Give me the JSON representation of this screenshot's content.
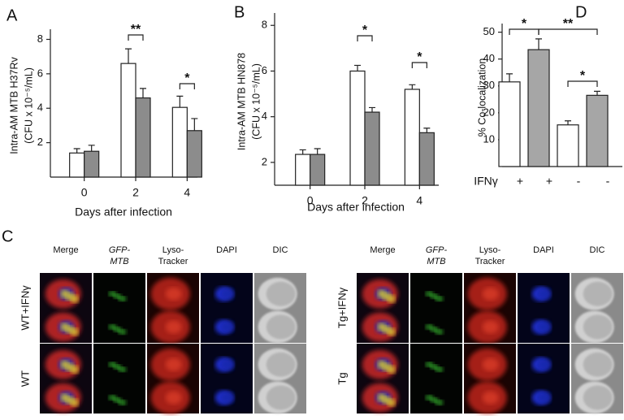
{
  "chart_data": [
    {
      "type": "bar",
      "label": "A",
      "ylabel": [
        "Intra-AM MTB H37Rv",
        "(CFU x 10⁻⁵/mL)"
      ],
      "xlabel": "Days after infection",
      "categories": [
        "0",
        "2",
        "4"
      ],
      "series": [
        {
          "color": "#ffffff",
          "values": [
            1.4,
            6.6,
            4.05
          ],
          "errors": [
            0.25,
            0.85,
            0.65
          ]
        },
        {
          "color": "#8c8c8c",
          "values": [
            1.5,
            4.6,
            2.7
          ],
          "errors": [
            0.35,
            0.55,
            0.7
          ]
        }
      ],
      "ylim": [
        0,
        8.4
      ],
      "yticks": [
        2,
        4,
        6,
        8
      ],
      "annotations": [
        "**",
        "*"
      ]
    },
    {
      "type": "bar",
      "label": "B",
      "ylabel": [
        "Intra-AM MTB HN878",
        "(CFU x 10⁻⁵/mL)"
      ],
      "xlabel": "Days after infection",
      "categories": [
        "0",
        "2",
        "4"
      ],
      "series": [
        {
          "color": "#ffffff",
          "values": [
            2.35,
            6.0,
            5.2
          ],
          "errors": [
            0.2,
            0.25,
            0.2
          ]
        },
        {
          "color": "#8c8c8c",
          "values": [
            2.35,
            4.2,
            3.3
          ],
          "errors": [
            0.25,
            0.2,
            0.2
          ]
        }
      ],
      "ylim": [
        1,
        8.4
      ],
      "yticks": [
        2,
        4,
        6,
        8
      ],
      "annotations": [
        "*",
        "*"
      ]
    },
    {
      "type": "bar",
      "label": "D",
      "ylabel": [
        "% Co-localization"
      ],
      "xlabel": "IFNγ",
      "categories": [
        "+",
        "+",
        "-",
        "-"
      ],
      "series": [
        {
          "colors": [
            "#ffffff",
            "#a6a6a6",
            "#ffffff",
            "#a6a6a6"
          ],
          "values": [
            31.5,
            43.5,
            15.5,
            26.5
          ],
          "errors": [
            3,
            4,
            1.5,
            1.5
          ]
        }
      ],
      "ylim": [
        0,
        52
      ],
      "yticks": [
        10,
        20,
        30,
        40,
        50
      ],
      "annotations": [
        "*",
        "**",
        "*"
      ]
    }
  ],
  "panel_c": {
    "label": "C",
    "groups": [
      {
        "columns": [
          "Merge",
          "GFP-MTB",
          "Lyso-Tracker",
          "DAPI",
          "DIC"
        ],
        "rows": [
          "WT+IFNγ",
          "WT"
        ]
      },
      {
        "columns": [
          "Merge",
          "GFP-MTB",
          "Lyso-Tracker",
          "DAPI",
          "DIC"
        ],
        "rows": [
          "Tg+IFNγ",
          "Tg"
        ]
      }
    ]
  }
}
